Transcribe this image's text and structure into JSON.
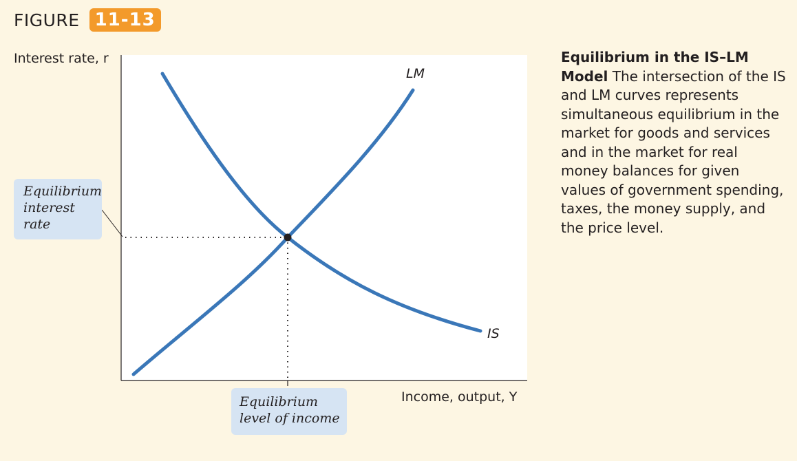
{
  "figure": {
    "word": "FIGURE",
    "number": "11-13"
  },
  "chart_data": {
    "type": "line",
    "xlabel": "Income, output, Y",
    "ylabel": "Interest rate, r",
    "series": [
      {
        "name": "LM"
      },
      {
        "name": "IS"
      }
    ],
    "annotations": {
      "equilibrium_rate": "Equilibrium interest rate",
      "equilibrium_income": "Equilibrium level of income"
    }
  },
  "caption": {
    "title": "Equilibrium in the IS–LM Model",
    "body": "The intersection of the IS and LM curves represents simultaneous equilibrium in the market for goods and services and in the market for real money balances for given values of government spending, taxes, the money supply, and the price level."
  },
  "colors": {
    "curve": "#3a77b8",
    "callout": "#d6e4f3",
    "badge": "#f39a2b",
    "background": "#fdf6e3",
    "plot": "#ffffff"
  }
}
